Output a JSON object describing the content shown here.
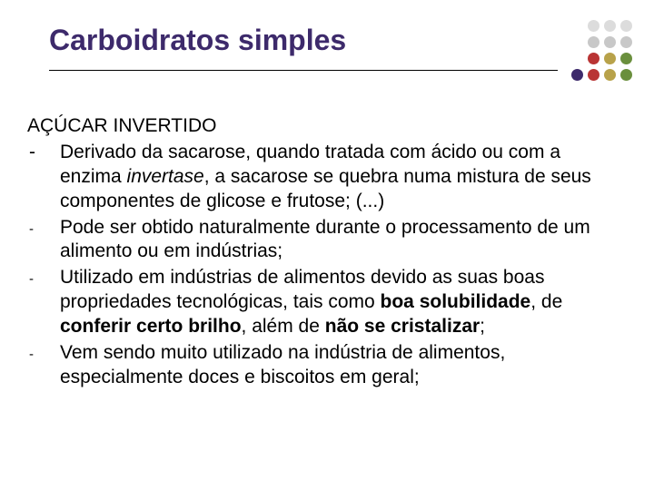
{
  "title": {
    "text": "Carboidratos simples",
    "color": "#3d2a6b",
    "fontsize": 32
  },
  "dot_grid": {
    "rows": 4,
    "cols": 4,
    "size": 13,
    "gap": 5,
    "colors": [
      "#ffffff",
      "#dcdcdc",
      "#dcdcdc",
      "#dcdcdc",
      "#ffffff",
      "#c8c8c8",
      "#c8c8c8",
      "#c8c8c8",
      "#ffffff",
      "#b93434",
      "#b8a24a",
      "#6a8f3d",
      "#3d2a6b",
      "#b93434",
      "#b8a24a",
      "#6a8f3d"
    ]
  },
  "body": {
    "subtitle": "AÇÚCAR INVERTIDO",
    "items": [
      {
        "dash": "-",
        "segments": [
          {
            "t": " Derivado da sacarose, quando tratada com ácido ou com a enzima "
          },
          {
            "t": "invertase",
            "i": true
          },
          {
            "t": ", a sacarose se quebra numa mistura de seus componentes de glicose e frutose; (...)"
          }
        ]
      },
      {
        "dash": "-",
        "segments": [
          {
            "t": "Pode ser obtido naturalmente durante o processamento de um alimento ou em indústrias;"
          }
        ]
      },
      {
        "dash": "-",
        "segments": [
          {
            "t": "Utilizado em indústrias de alimentos devido as suas boas propriedades tecnológicas, tais como "
          },
          {
            "t": "boa solubilidade",
            "b": true
          },
          {
            "t": ", de "
          },
          {
            "t": "conferir certo brilho",
            "b": true
          },
          {
            "t": ", além de "
          },
          {
            "t": "não se cristalizar",
            "b": true
          },
          {
            "t": ";"
          }
        ]
      },
      {
        "dash": "-",
        "segments": [
          {
            "t": "Vem sendo muito utilizado na indústria de alimentos, especialmente doces e biscoitos em geral;"
          }
        ]
      }
    ]
  },
  "colors": {
    "text": "#000000",
    "background": "#ffffff",
    "rule": "#000000"
  }
}
